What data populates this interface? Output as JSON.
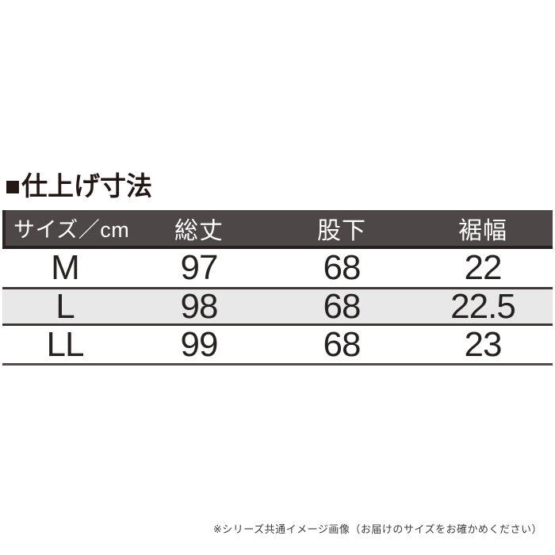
{
  "title": {
    "marker": "■",
    "text": "仕上げ寸法"
  },
  "table": {
    "columns": [
      "サイズ／cm",
      "総丈",
      "股下",
      "裾幅"
    ],
    "rows": [
      [
        "M",
        "97",
        "68",
        "22"
      ],
      [
        "L",
        "98",
        "68",
        "22.5"
      ],
      [
        "LL",
        "99",
        "68",
        "23"
      ]
    ],
    "highlighted_row": "L"
  },
  "footnote": "※シリーズ共通イメージ画像（お届けのサイズをお確かめください）",
  "colors": {
    "header_bg": "#4d4748",
    "header_text": "#ffffff",
    "header_border": "#241e1f",
    "alt_row_bg": "#e8e8e9",
    "separator": "#3c3637",
    "text": "#262220",
    "title_text": "#231815"
  }
}
